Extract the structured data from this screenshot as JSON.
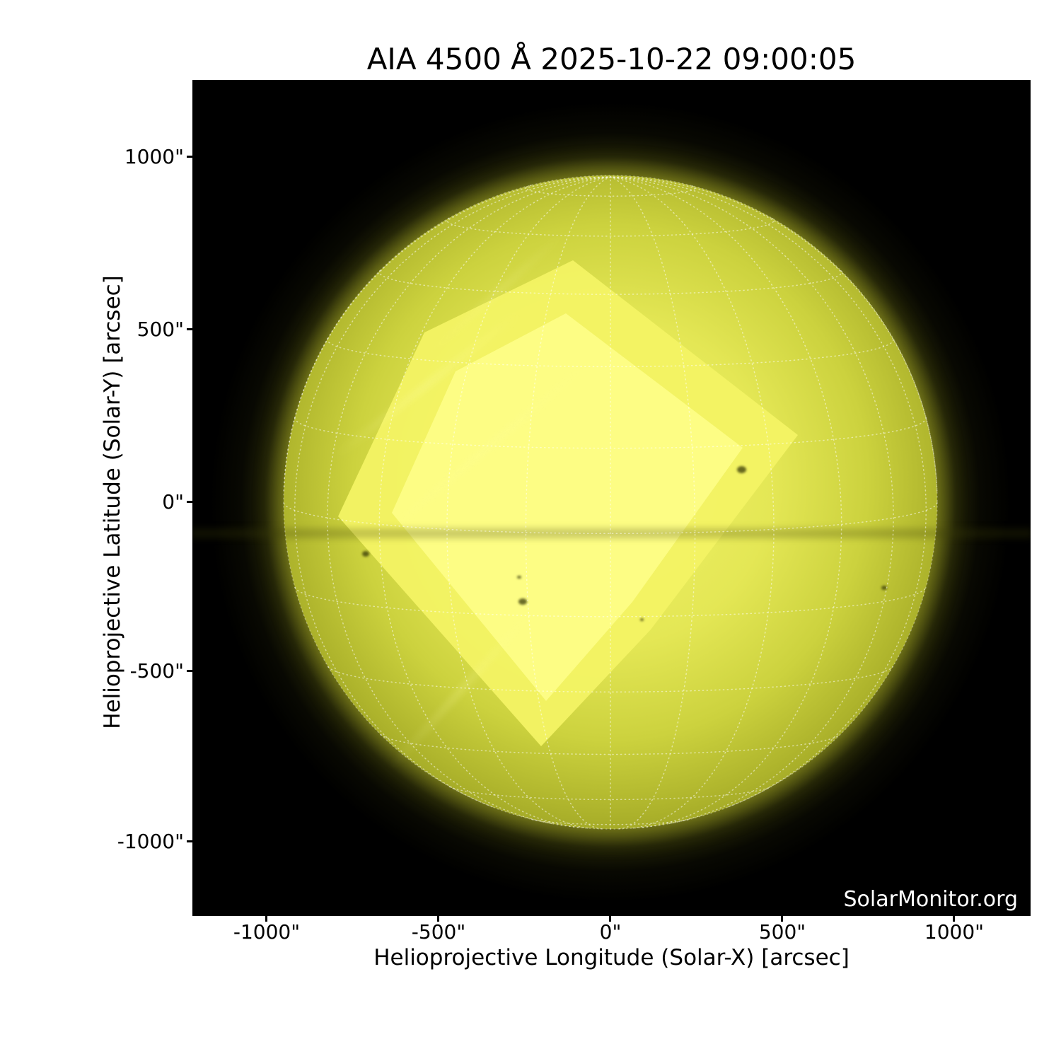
{
  "page": {
    "title": "AIA 4500 Å 2025-10-22 09:00:05"
  },
  "watermark": "SolarMonitor.org",
  "axes": {
    "xlabel": "Helioprojective Longitude (Solar-X) [arcsec]",
    "ylabel": "Helioprojective Latitude (Solar-Y) [arcsec]",
    "xticks": [
      "-1000\"",
      "-500\"",
      "0\"",
      "500\"",
      "1000\""
    ],
    "yticks": [
      "1000\"",
      "500\"",
      "0\"",
      "-500\"",
      "-1000\""
    ]
  },
  "chart_data": {
    "type": "heatmap",
    "title": "AIA 4500 Å 2025-10-22 09:00:05",
    "instrument": "AIA",
    "wavelength": "4500 Å",
    "observation_datetime": "2025-10-22 09:00:05",
    "xlabel": "Helioprojective Longitude (Solar-X) [arcsec]",
    "ylabel": "Helioprojective Latitude (Solar-Y) [arcsec]",
    "xlim_arcsec": [
      -1216,
      1222
    ],
    "ylim_arcsec": [
      -1199,
      1223
    ],
    "xticks_arcsec": [
      -1000,
      -500,
      0,
      500,
      1000
    ],
    "yticks_arcsec": [
      1000,
      500,
      0,
      -500,
      -1000
    ],
    "grid": "heliographic, dotted, 15 deg spacing",
    "legend": "none",
    "solar_disk": {
      "center_arcsec": [
        0,
        0
      ],
      "radius_arcsec": 951,
      "b0_deg": 5.5,
      "grid_spacing_deg": 15
    },
    "colors": {
      "plot_background": "#000000",
      "disk_saturated_core": "#fbfb7d",
      "disk_mid": "#c9cf3c",
      "disk_limb": "#6f7410",
      "grid_lines": "#ffffff",
      "text": "#000000",
      "watermark_text": "#ffffff"
    },
    "sunspots_arcsec": [
      [
        381,
        95,
        27
      ],
      [
        797,
        -249,
        16
      ],
      [
        -712,
        -150,
        22
      ],
      [
        -265,
        -218,
        12
      ],
      [
        -255,
        -290,
        24
      ],
      [
        91,
        -342,
        10
      ]
    ]
  }
}
